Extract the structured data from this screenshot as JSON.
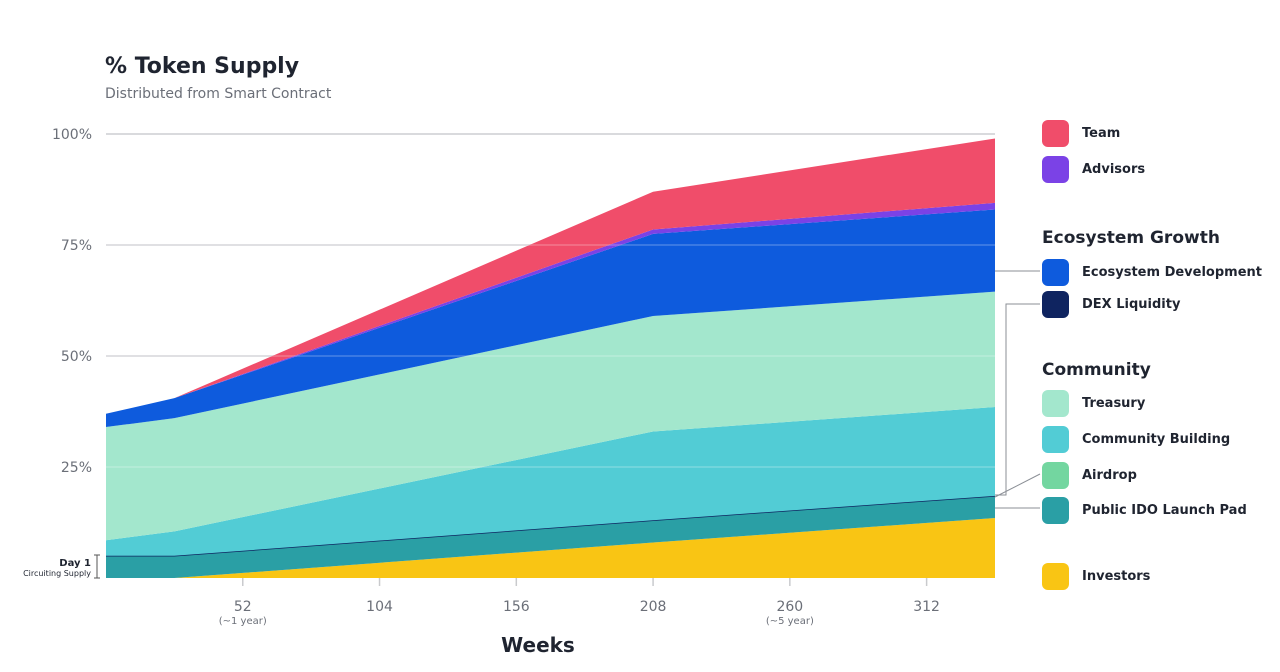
{
  "title": "% Token Supply",
  "subtitle": "Distributed from Smart Contract",
  "colors": {
    "investors": "#f9c514",
    "public_ido": "#2a9fa5",
    "airdrop": "#73d6a0",
    "community_building": "#52ccd5",
    "treasury": "#a3e7cd",
    "dex_liquidity": "#0f2460",
    "ecosystem_development": "#0e5bdd",
    "advisors": "#7b42e6",
    "team": "#f04d6a"
  },
  "legend": {
    "team": "Team",
    "advisors": "Advisors",
    "ecosystem_group": "Ecosystem Growth",
    "ecosystem_development": "Ecosystem Development",
    "dex_liquidity": "DEX Liquidity",
    "community_group": "Community",
    "treasury": "Treasury",
    "community_building": "Community Building",
    "airdrop": "Airdrop",
    "public_ido": "Public IDO Launch Pad",
    "investors": "Investors"
  },
  "annotation": {
    "day1": "Day 1",
    "circulating": "Circuiting Supply"
  },
  "chart_data": {
    "type": "area",
    "stacked": true,
    "xlabel": "Weeks",
    "ylabel": "",
    "xlim": [
      0,
      338
    ],
    "ylim": [
      0,
      100
    ],
    "y_ticks": [
      {
        "value": 25,
        "label": "25%"
      },
      {
        "value": 50,
        "label": "50%"
      },
      {
        "value": 75,
        "label": "75%"
      },
      {
        "value": 100,
        "label": "100%"
      }
    ],
    "x_ticks": [
      {
        "value": 52,
        "label": "52",
        "sublabel": "(~1 year)"
      },
      {
        "value": 104,
        "label": "104",
        "sublabel": ""
      },
      {
        "value": 156,
        "label": "156",
        "sublabel": ""
      },
      {
        "value": 208,
        "label": "208",
        "sublabel": ""
      },
      {
        "value": 260,
        "label": "260",
        "sublabel": "(~5 year)"
      },
      {
        "value": 312,
        "label": "312",
        "sublabel": ""
      }
    ],
    "grid": true,
    "legend_position": "right",
    "x": [
      0,
      26,
      208,
      338
    ],
    "series": [
      {
        "key": "investors",
        "name": "Investors",
        "values": [
          0.0,
          0.0,
          8.0,
          13.5
        ]
      },
      {
        "key": "public_ido",
        "name": "Public IDO Launch Pad",
        "values": [
          5.0,
          5.0,
          5.0,
          5.0
        ]
      },
      {
        "key": "airdrop",
        "name": "Airdrop",
        "values": [
          0.0,
          0.0,
          0.0,
          0.0
        ]
      },
      {
        "key": "community_building",
        "name": "Community Building",
        "values": [
          3.5,
          5.5,
          20.0,
          20.0
        ]
      },
      {
        "key": "treasury",
        "name": "Treasury",
        "values": [
          25.5,
          25.5,
          26.0,
          26.0
        ]
      },
      {
        "key": "dex_liquidity",
        "name": "DEX Liquidity",
        "values": [
          0.0,
          0.0,
          0.0,
          0.0
        ]
      },
      {
        "key": "ecosystem_development",
        "name": "Ecosystem Development",
        "values": [
          3.0,
          4.5,
          18.5,
          18.5
        ]
      },
      {
        "key": "advisors",
        "name": "Advisors",
        "values": [
          0.0,
          0.0,
          1.0,
          1.5
        ]
      },
      {
        "key": "team",
        "name": "Team",
        "values": [
          0.0,
          0.0,
          8.5,
          14.5
        ]
      }
    ]
  }
}
